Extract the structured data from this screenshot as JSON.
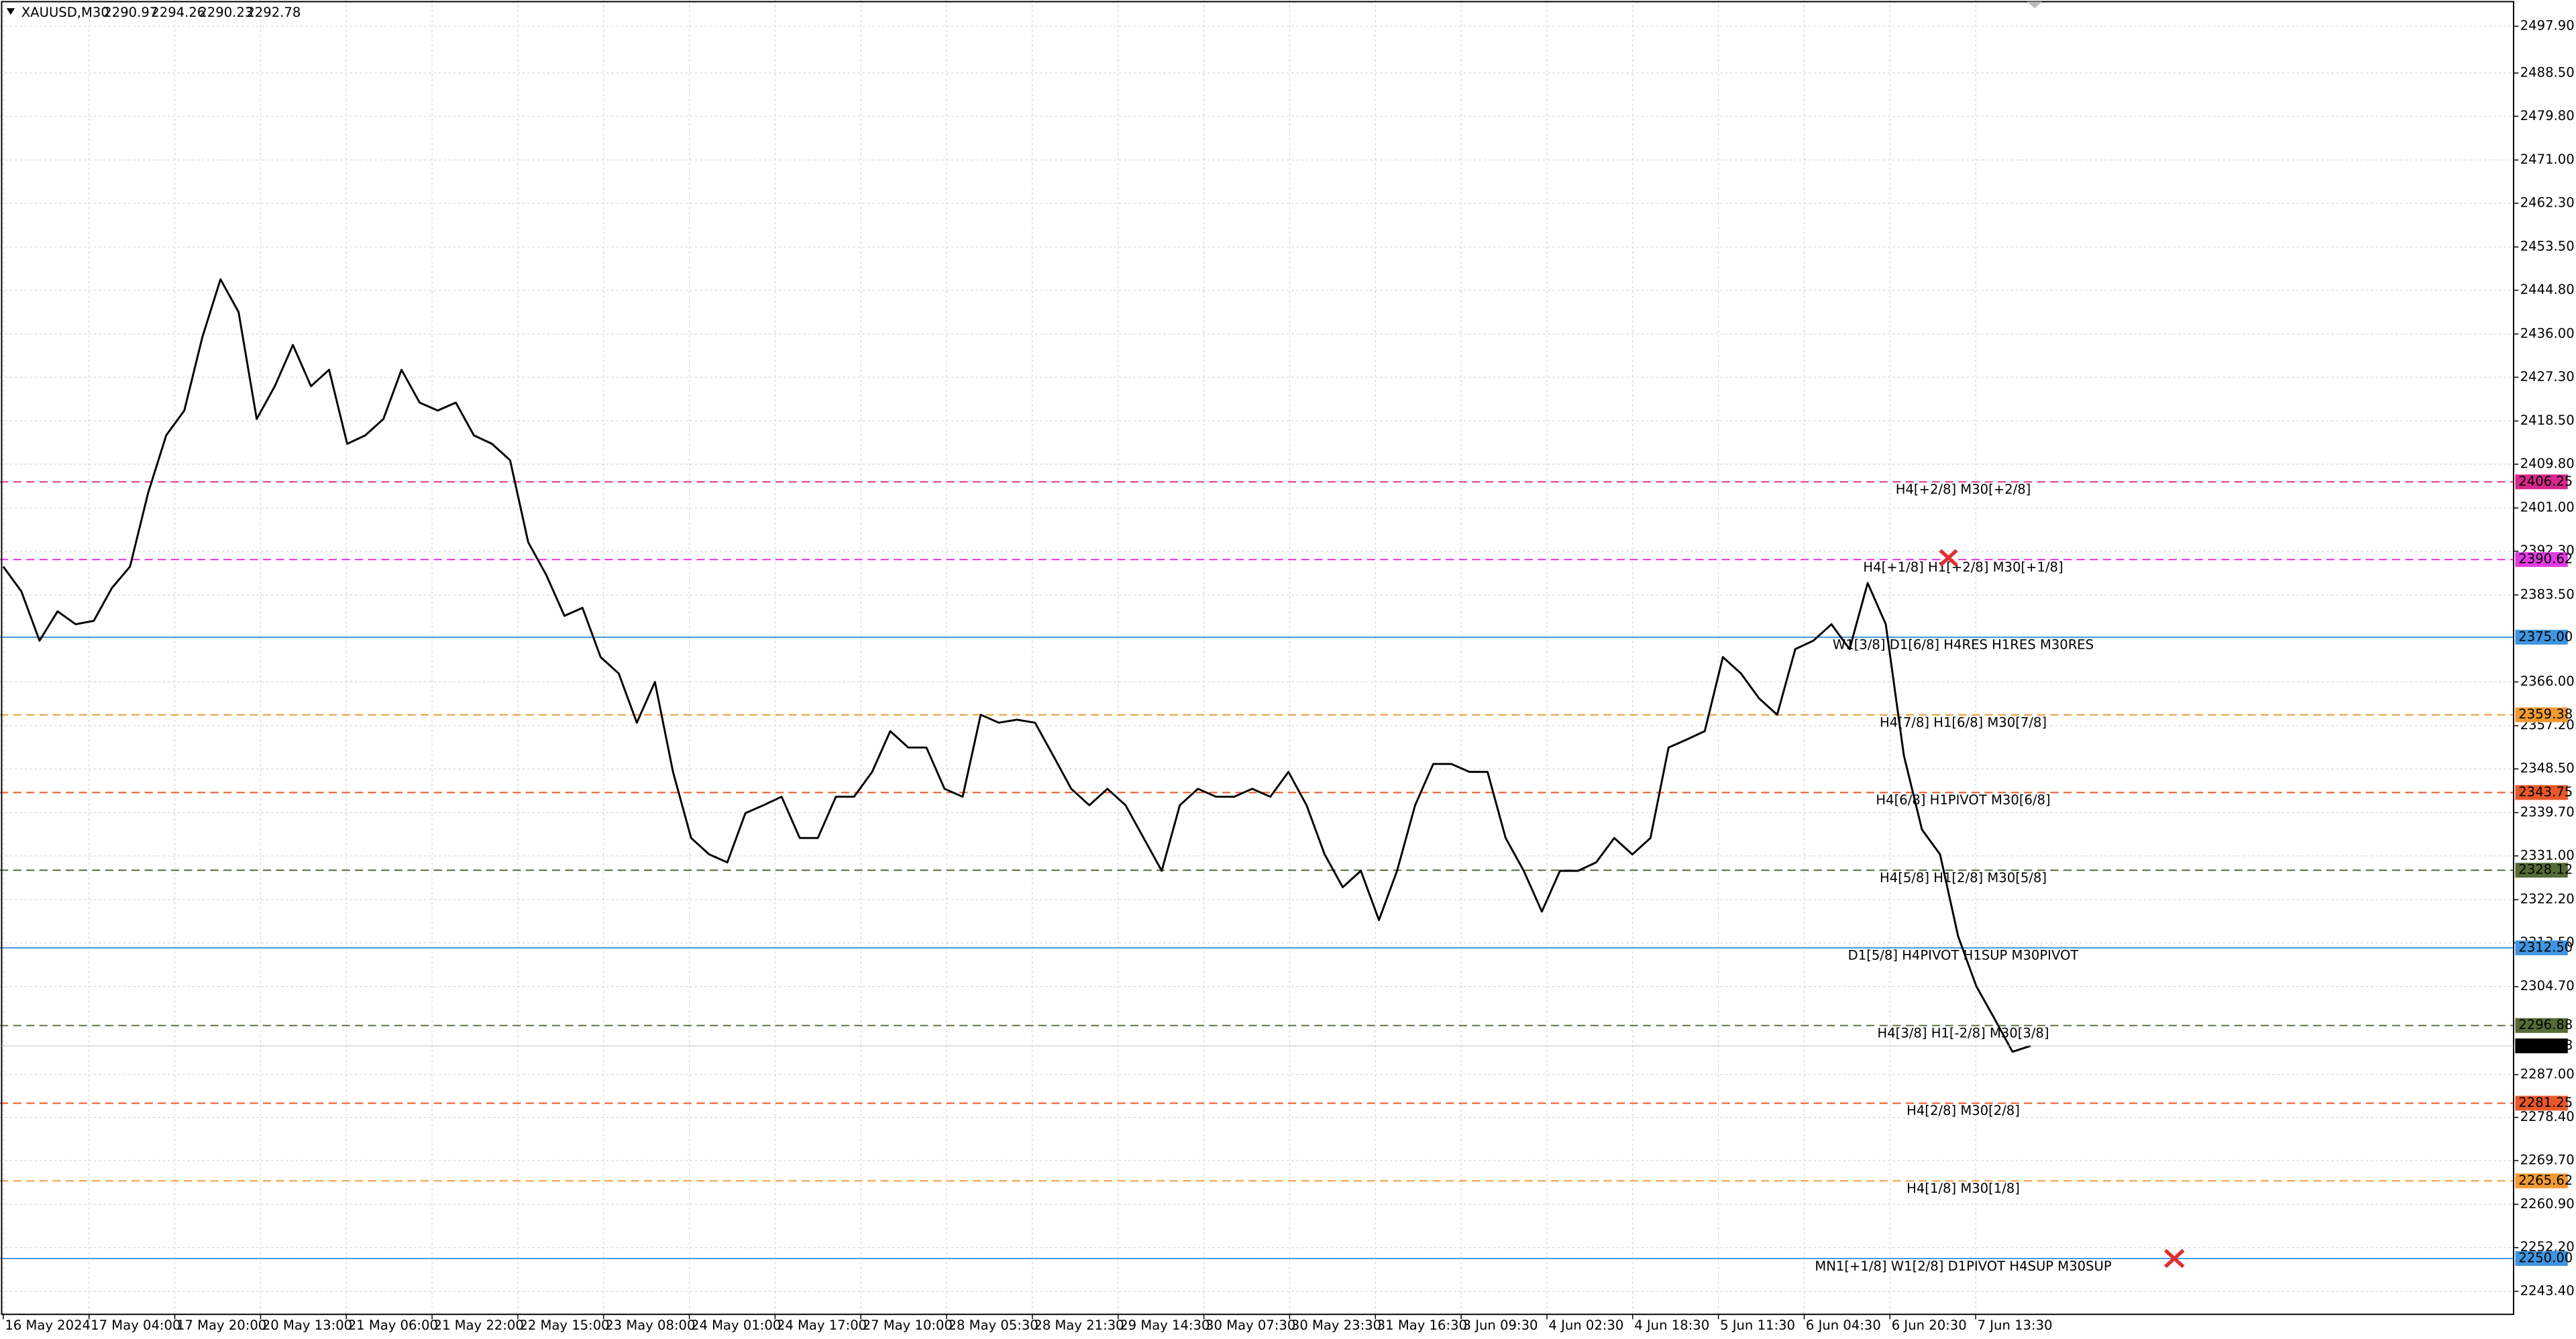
{
  "header": {
    "symbol": "XAUUSD,M30",
    "ohlc": [
      2290.97,
      2294.26,
      2290.23,
      2292.78
    ]
  },
  "chart_data": {
    "type": "line",
    "color": "#000000",
    "grid": true,
    "ylim": [
      2238.77,
      2503.19
    ],
    "yticks": [
      {
        "value": 2497.9,
        "label": "2497.90"
      },
      {
        "value": 2488.5,
        "label": "2488.50"
      },
      {
        "value": 2479.8,
        "label": "2479.80"
      },
      {
        "value": 2471,
        "label": "2471.00"
      },
      {
        "value": 2462.3,
        "label": "2462.30"
      },
      {
        "value": 2453.5,
        "label": "2453.50"
      },
      {
        "value": 2444.8,
        "label": "2444.80"
      },
      {
        "value": 2436,
        "label": "2436.00"
      },
      {
        "value": 2427.3,
        "label": "2427.30"
      },
      {
        "value": 2418.5,
        "label": "2418.50"
      },
      {
        "value": 2409.8,
        "label": "2409.80"
      },
      {
        "value": 2401,
        "label": "2401.00"
      },
      {
        "value": 2392.3,
        "label": "2392.30"
      },
      {
        "value": 2383.5,
        "label": "2383.50"
      },
      {
        "value": 2366,
        "label": "2366.00"
      },
      {
        "value": 2357.2,
        "label": "2357.20"
      },
      {
        "value": 2348.5,
        "label": "2348.50"
      },
      {
        "value": 2339.7,
        "label": "2339.70"
      },
      {
        "value": 2331,
        "label": "2331.00"
      },
      {
        "value": 2322.2,
        "label": "2322.20"
      },
      {
        "value": 2313.5,
        "label": "2313.50"
      },
      {
        "value": 2304.7,
        "label": "2304.70"
      },
      {
        "value": 2287,
        "label": "2287.00"
      },
      {
        "value": 2278.4,
        "label": "2278.40"
      },
      {
        "value": 2269.7,
        "label": "2269.70"
      },
      {
        "value": 2260.9,
        "label": "2260.90"
      },
      {
        "value": 2252.2,
        "label": "2252.20"
      },
      {
        "value": 2243.4,
        "label": "2243.40"
      }
    ],
    "x_labels": [
      "16 May 2024",
      "17 May 04:00",
      "17 May 20:00",
      "20 May 13:00",
      "21 May 06:00",
      "21 May 22:00",
      "22 May 15:00",
      "23 May 08:00",
      "24 May 01:00",
      "24 May 17:00",
      "27 May 10:00",
      "28 May 05:30",
      "28 May 21:30",
      "29 May 14:30",
      "30 May 07:30",
      "30 May 23:30",
      "31 May 16:30",
      "3 Jun 09:30",
      "4 Jun 02:30",
      "4 Jun 18:30",
      "5 Jun 11:30",
      "6 Jun 04:30",
      "6 Jun 20:30",
      "7 Jun 13:30"
    ],
    "values": [
      2389.2,
      2384.2,
      2374.3,
      2380.2,
      2377.6,
      2378.3,
      2384.9,
      2389.2,
      2404.0,
      2415.6,
      2420.6,
      2435.4,
      2447.0,
      2440.4,
      2418.9,
      2425.5,
      2433.8,
      2425.5,
      2428.8,
      2413.9,
      2415.6,
      2418.9,
      2428.8,
      2422.2,
      2420.6,
      2422.2,
      2415.6,
      2413.9,
      2410.6,
      2394.1,
      2387.5,
      2379.3,
      2380.9,
      2371.0,
      2367.7,
      2357.8,
      2366.0,
      2347.9,
      2334.6,
      2331.3,
      2329.7,
      2339.6,
      2341.2,
      2342.9,
      2334.6,
      2334.6,
      2342.9,
      2342.9,
      2347.9,
      2356.1,
      2352.8,
      2352.8,
      2344.5,
      2342.9,
      2359.4,
      2357.8,
      2358.4,
      2357.8,
      2351.2,
      2344.5,
      2341.2,
      2344.5,
      2341.2,
      2334.6,
      2328.0,
      2341.2,
      2344.5,
      2342.9,
      2342.9,
      2344.5,
      2342.9,
      2347.9,
      2341.2,
      2331.3,
      2324.7,
      2328.0,
      2318.1,
      2328.0,
      2341.2,
      2349.5,
      2349.5,
      2347.9,
      2347.9,
      2334.6,
      2328.0,
      2319.8,
      2328.0,
      2328.0,
      2329.7,
      2334.6,
      2331.3,
      2334.6,
      2352.8,
      2354.4,
      2356.1,
      2371.0,
      2367.7,
      2362.7,
      2359.4,
      2372.6,
      2374.3,
      2377.6,
      2372.6,
      2385.9,
      2377.6,
      2351.2,
      2336.3,
      2331.3,
      2314.8,
      2304.8,
      2298.3,
      2291.6,
      2292.78
    ],
    "current_price": 2292.78,
    "levels": [
      {
        "value": 2406.25,
        "label": "2406.25",
        "text": "H4[+2/8] M30[+2/8]",
        "color": "#d6288a",
        "dashed": true
      },
      {
        "value": 2390.62,
        "label": "2390.62",
        "text": "H4[+1/8] H1[+2/8] M30[+1/8]",
        "color": "#e03ce0",
        "dashed": true
      },
      {
        "value": 2375,
        "label": "2375.00",
        "text": "W1[3/8] D1[6/8] H4RES H1RES M30RES",
        "color": "#3f95e0",
        "dashed": false
      },
      {
        "value": 2359.38,
        "label": "2359.38",
        "text": "H4[7/8] H1[6/8] M30[7/8]",
        "color": "#f09a30",
        "dashed": true
      },
      {
        "value": 2343.75,
        "label": "2343.75",
        "text": "H4[6/8] H1PIVOT M30[6/8]",
        "color": "#e8582a",
        "dashed": true
      },
      {
        "value": 2328.12,
        "label": "2328.12",
        "text": "H4[5/8] H1[2/8] M30[5/8]",
        "color": "#556b35",
        "dashed": true
      },
      {
        "value": 2312.5,
        "label": "2312.50",
        "text": "D1[5/8] H4PIVOT H1SUP M30PIVOT",
        "color": "#3f95e0",
        "dashed": false
      },
      {
        "value": 2296.88,
        "label": "2296.88",
        "text": "H4[3/8] H1[-2/8] M30[3/8]",
        "color": "#556b35",
        "dashed": true
      },
      {
        "value": 2281.25,
        "label": "2281.25",
        "text": "H4[2/8] M30[2/8]",
        "color": "#e8582a",
        "dashed": true
      },
      {
        "value": 2265.62,
        "label": "2265.62",
        "text": "H4[1/8] M30[1/8]",
        "color": "#f09a30",
        "dashed": true
      },
      {
        "value": 2250,
        "label": "2250.00",
        "text": "MN1[+1/8] W1[2/8] D1PIVOT H4SUP M30SUP",
        "color": "#3f95e0",
        "dashed": false
      }
    ]
  }
}
